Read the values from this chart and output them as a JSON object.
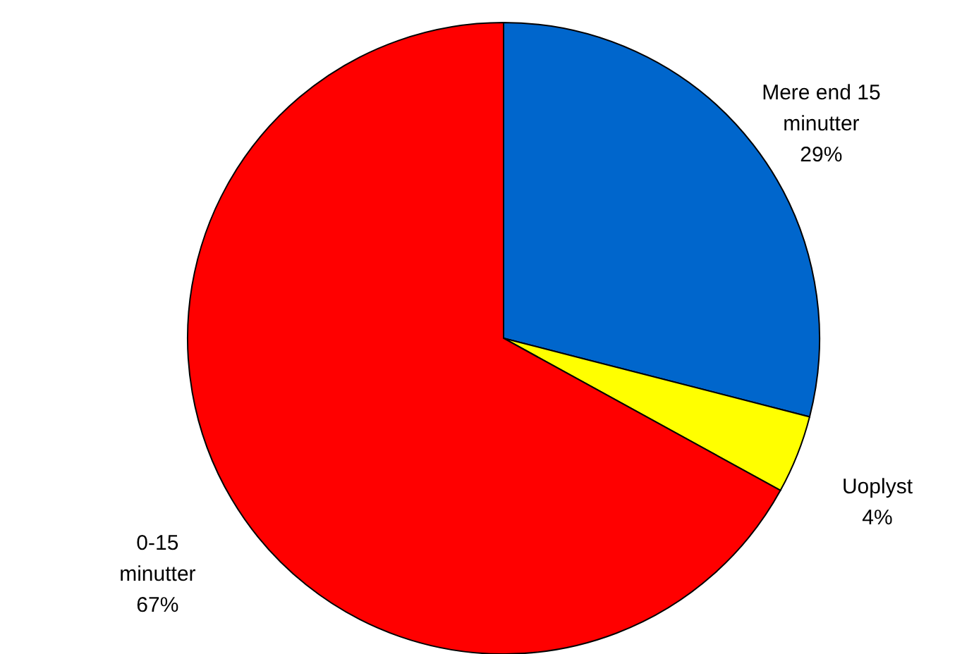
{
  "chart_data": {
    "type": "pie",
    "categories": [
      "Mere end 15 minutter",
      "Uoplyst",
      "0-15 minutter"
    ],
    "values": [
      29,
      4,
      67
    ],
    "colors": [
      "#0066cc",
      "#ffff00",
      "#ff0000"
    ],
    "value_labels": [
      "29%",
      "4%",
      "67%"
    ]
  }
}
